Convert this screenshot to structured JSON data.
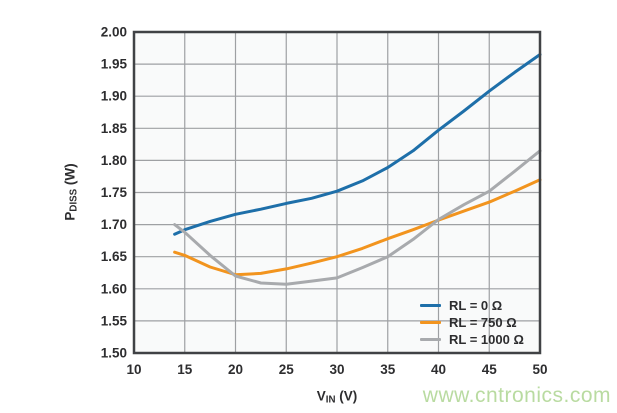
{
  "watermark": {
    "text": "www.cntronics.com",
    "color": "#b9dba1"
  },
  "axis_labels": {
    "y_base": "P",
    "y_sub": "DISS",
    "y_unit": " (W)",
    "x_base": "V",
    "x_sub": "IN",
    "x_unit": " (V)"
  },
  "chart_data": {
    "type": "line",
    "title": "",
    "xlabel": "VIN (V)",
    "ylabel": "PDISS (W)",
    "xlim": [
      10,
      50
    ],
    "ylim": [
      1.5,
      2.0
    ],
    "xticks": [
      10,
      15,
      20,
      25,
      30,
      35,
      40,
      45,
      50
    ],
    "yticks": [
      1.5,
      1.55,
      1.6,
      1.65,
      1.7,
      1.75,
      1.8,
      1.85,
      1.9,
      1.95,
      2.0
    ],
    "grid": true,
    "legend_position": "inside-bottom-right",
    "x": [
      14,
      15,
      17.5,
      20,
      22.5,
      25,
      27.5,
      30,
      32.5,
      35,
      37.5,
      40,
      42.5,
      45,
      47.5,
      50
    ],
    "series": [
      {
        "name": "RL = 0 Ω",
        "color": "#1e6fa9",
        "values": [
          1.685,
          1.692,
          1.705,
          1.716,
          1.724,
          1.733,
          1.741,
          1.752,
          1.768,
          1.789,
          1.815,
          1.847,
          1.877,
          1.908,
          1.937,
          1.965
        ]
      },
      {
        "name": "RL = 750 Ω",
        "color": "#f2941e",
        "values": [
          1.657,
          1.652,
          1.634,
          1.622,
          1.624,
          1.631,
          1.64,
          1.65,
          1.663,
          1.678,
          1.692,
          1.707,
          1.721,
          1.735,
          1.752,
          1.77
        ]
      },
      {
        "name": "RL = 1000 Ω",
        "color": "#a8aaad",
        "values": [
          1.7,
          1.688,
          1.652,
          1.62,
          1.609,
          1.607,
          1.612,
          1.617,
          1.633,
          1.65,
          1.677,
          1.708,
          1.731,
          1.752,
          1.783,
          1.815
        ]
      }
    ],
    "style": {
      "plot_bg": "#f9fafa",
      "grid_color": "#9ea0a3",
      "border_color": "#404245",
      "tick_color": "#2d2d2f"
    }
  }
}
